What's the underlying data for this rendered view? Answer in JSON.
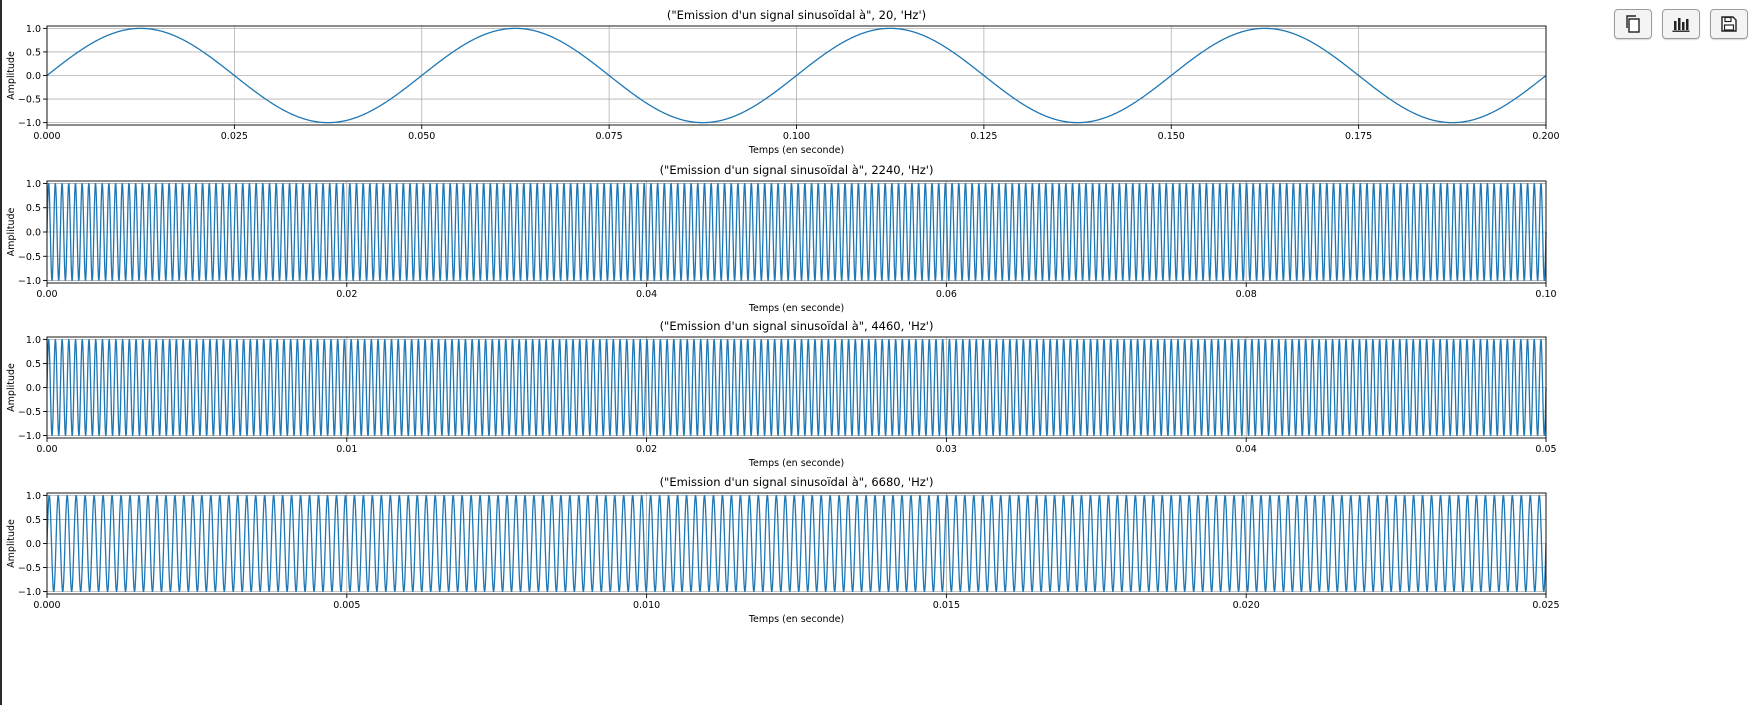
{
  "toolbar": {
    "buttons": [
      {
        "icon": "copy-icon"
      },
      {
        "icon": "bar-chart-icon"
      },
      {
        "icon": "save-icon"
      }
    ]
  },
  "colors": {
    "line": "#1f77b4",
    "grid": "#b0b0b0",
    "axes": "#000000"
  },
  "chart_data": [
    {
      "type": "line",
      "title": "(\"Emission d'un signal sinusoïdal à\", 20, 'Hz')",
      "xlabel": "Temps (en seconde)",
      "ylabel": "Amplitude",
      "frequency": 20,
      "function": "sin(2*pi*f*t)",
      "xlim": [
        0,
        0.2
      ],
      "ylim": [
        -1.05,
        1.05
      ],
      "xticks": [
        0,
        0.025,
        0.05,
        0.075,
        0.1,
        0.125,
        0.15,
        0.175,
        0.2
      ],
      "xtick_labels": [
        "0.000",
        "0.025",
        "0.050",
        "0.075",
        "0.100",
        "0.125",
        "0.150",
        "0.175",
        "0.200"
      ],
      "yticks": [
        1.0,
        0.5,
        0.0,
        -0.5,
        -1.0
      ],
      "ytick_labels": [
        "1.0",
        "0.5",
        "0.0",
        "−0.5",
        "−1.0"
      ],
      "grid": true
    },
    {
      "type": "line",
      "title": "(\"Emission d'un signal sinusoïdal à\", 2240, 'Hz')",
      "xlabel": "Temps (en seconde)",
      "ylabel": "Amplitude",
      "frequency": 2240,
      "function": "sin(2*pi*f*t)",
      "xlim": [
        0,
        0.1
      ],
      "ylim": [
        -1.05,
        1.05
      ],
      "xticks": [
        0,
        0.02,
        0.04,
        0.06,
        0.08,
        0.1
      ],
      "xtick_labels": [
        "0.00",
        "0.02",
        "0.04",
        "0.06",
        "0.08",
        "0.10"
      ],
      "yticks": [
        1.0,
        0.5,
        0.0,
        -0.5,
        -1.0
      ],
      "ytick_labels": [
        "1.0",
        "0.5",
        "0.0",
        "−0.5",
        "−1.0"
      ],
      "grid": true
    },
    {
      "type": "line",
      "title": "(\"Emission d'un signal sinusoïdal à\", 4460, 'Hz')",
      "xlabel": "Temps (en seconde)",
      "ylabel": "Amplitude",
      "frequency": 4460,
      "function": "sin(2*pi*f*t)",
      "xlim": [
        0,
        0.05
      ],
      "ylim": [
        -1.05,
        1.05
      ],
      "xticks": [
        0,
        0.01,
        0.02,
        0.03,
        0.04,
        0.05
      ],
      "xtick_labels": [
        "0.00",
        "0.01",
        "0.02",
        "0.03",
        "0.04",
        "0.05"
      ],
      "yticks": [
        1.0,
        0.5,
        0.0,
        -0.5,
        -1.0
      ],
      "ytick_labels": [
        "1.0",
        "0.5",
        "0.0",
        "−0.5",
        "−1.0"
      ],
      "grid": true
    },
    {
      "type": "line",
      "title": "(\"Emission d'un signal sinusoïdal à\", 6680, 'Hz')",
      "xlabel": "Temps (en seconde)",
      "ylabel": "Amplitude",
      "frequency": 6680,
      "function": "sin(2*pi*f*t)",
      "xlim": [
        0,
        0.025
      ],
      "ylim": [
        -1.05,
        1.05
      ],
      "xticks": [
        0,
        0.005,
        0.01,
        0.015,
        0.02,
        0.025
      ],
      "xtick_labels": [
        "0.000",
        "0.005",
        "0.010",
        "0.015",
        "0.020",
        "0.025"
      ],
      "yticks": [
        1.0,
        0.5,
        0.0,
        -0.5,
        -1.0
      ],
      "ytick_labels": [
        "1.0",
        "0.5",
        "0.0",
        "−0.5",
        "−1.0"
      ],
      "grid": true
    }
  ]
}
